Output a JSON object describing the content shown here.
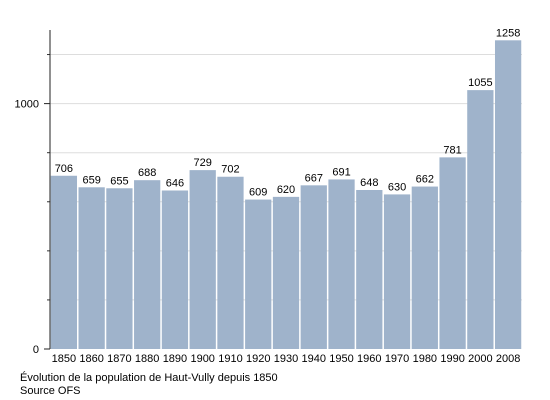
{
  "chart_data": {
    "type": "bar",
    "categories": [
      "1850",
      "1860",
      "1870",
      "1880",
      "1890",
      "1900",
      "1910",
      "1920",
      "1930",
      "1940",
      "1950",
      "1960",
      "1970",
      "1980",
      "1990",
      "2000",
      "2008"
    ],
    "values": [
      706,
      659,
      655,
      688,
      646,
      729,
      702,
      609,
      620,
      667,
      691,
      648,
      630,
      662,
      781,
      1055,
      1258
    ],
    "yticks": [
      0,
      1000
    ],
    "ylim": [
      0,
      1300
    ],
    "grid": true,
    "bar_color": "#9fb3cb",
    "caption": "Évolution de la population de Haut-Vully depuis 1850",
    "source": "Source OFS"
  }
}
